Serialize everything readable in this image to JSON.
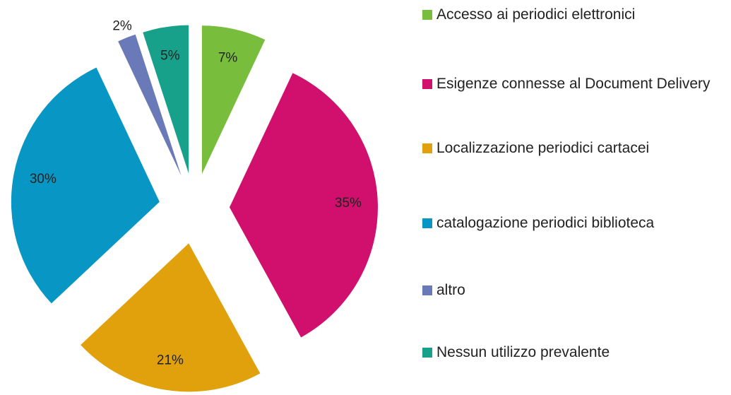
{
  "chart_data": {
    "type": "pie",
    "categories": [
      "Accesso ai periodici elettronici",
      "Esigenze connesse al Document Delivery",
      "Localizzazione periodici cartacei",
      "catalogazione periodici biblioteca",
      "altro",
      "Nessun utilizzo prevalente"
    ],
    "values": [
      7,
      35,
      21,
      30,
      2,
      5
    ],
    "value_labels": [
      "7%",
      "35%",
      "21%",
      "30%",
      "2%",
      "5%"
    ],
    "colors": [
      "#78be3c",
      "#d0106c",
      "#e0a10c",
      "#0896c4",
      "#6a7ab8",
      "#17a18a"
    ],
    "legend": "right"
  }
}
